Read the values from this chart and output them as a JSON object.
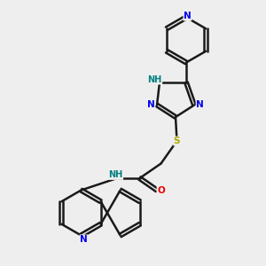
{
  "bg_color": "#eeeeee",
  "bond_color": "#1a1a1a",
  "bond_width": 1.8,
  "atom_colors": {
    "N": "#0000ee",
    "NH": "#008080",
    "S": "#aaaa00",
    "O": "#ee0000",
    "C": "#1a1a1a"
  },
  "font_size_atom": 7.5,
  "fig_size": [
    3.0,
    3.0
  ],
  "dpi": 100
}
